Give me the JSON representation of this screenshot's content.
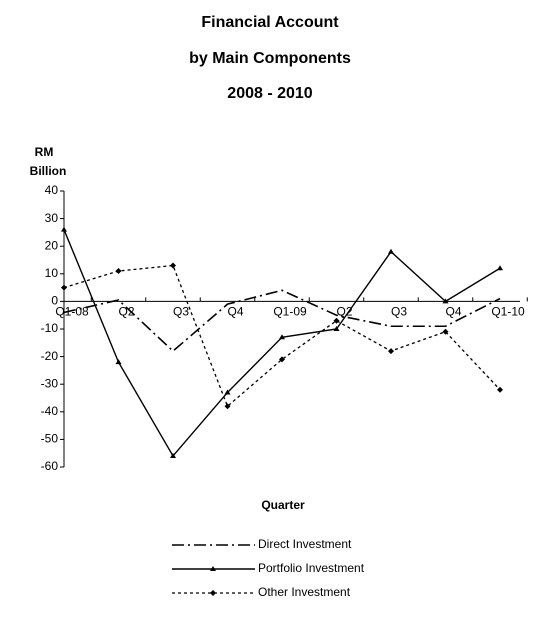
{
  "chart_data": {
    "type": "line",
    "title": [
      "Financial Account",
      "by Main  Components",
      "2008 - 2010"
    ],
    "y_label": [
      "RM",
      "Billion"
    ],
    "x_label": "Quarter",
    "categories": [
      "Q1-08",
      "Q2",
      "Q3",
      "Q4",
      "Q1-09",
      "Q2",
      "Q3",
      "Q4",
      "Q1-10"
    ],
    "series": [
      {
        "name": "Direct Investment",
        "color": "#000000",
        "values": [
          -4,
          0.5,
          -18,
          -1,
          4,
          -5,
          -9,
          -9,
          1
        ]
      },
      {
        "name": "Portfolio Investment",
        "color": "#000000",
        "values": [
          26,
          -22,
          -56,
          -33,
          -13,
          -10,
          18,
          0,
          12
        ]
      },
      {
        "name": "Other Investment",
        "color": "#000000",
        "values": [
          5,
          11,
          13,
          -38,
          -21,
          -7,
          -18,
          -11,
          -32
        ]
      }
    ],
    "ylim": [
      -60,
      40
    ],
    "yticks": [
      -60,
      -50,
      -40,
      -30,
      -20,
      -10,
      0,
      10,
      20,
      30,
      40
    ],
    "legend": "bottom"
  }
}
